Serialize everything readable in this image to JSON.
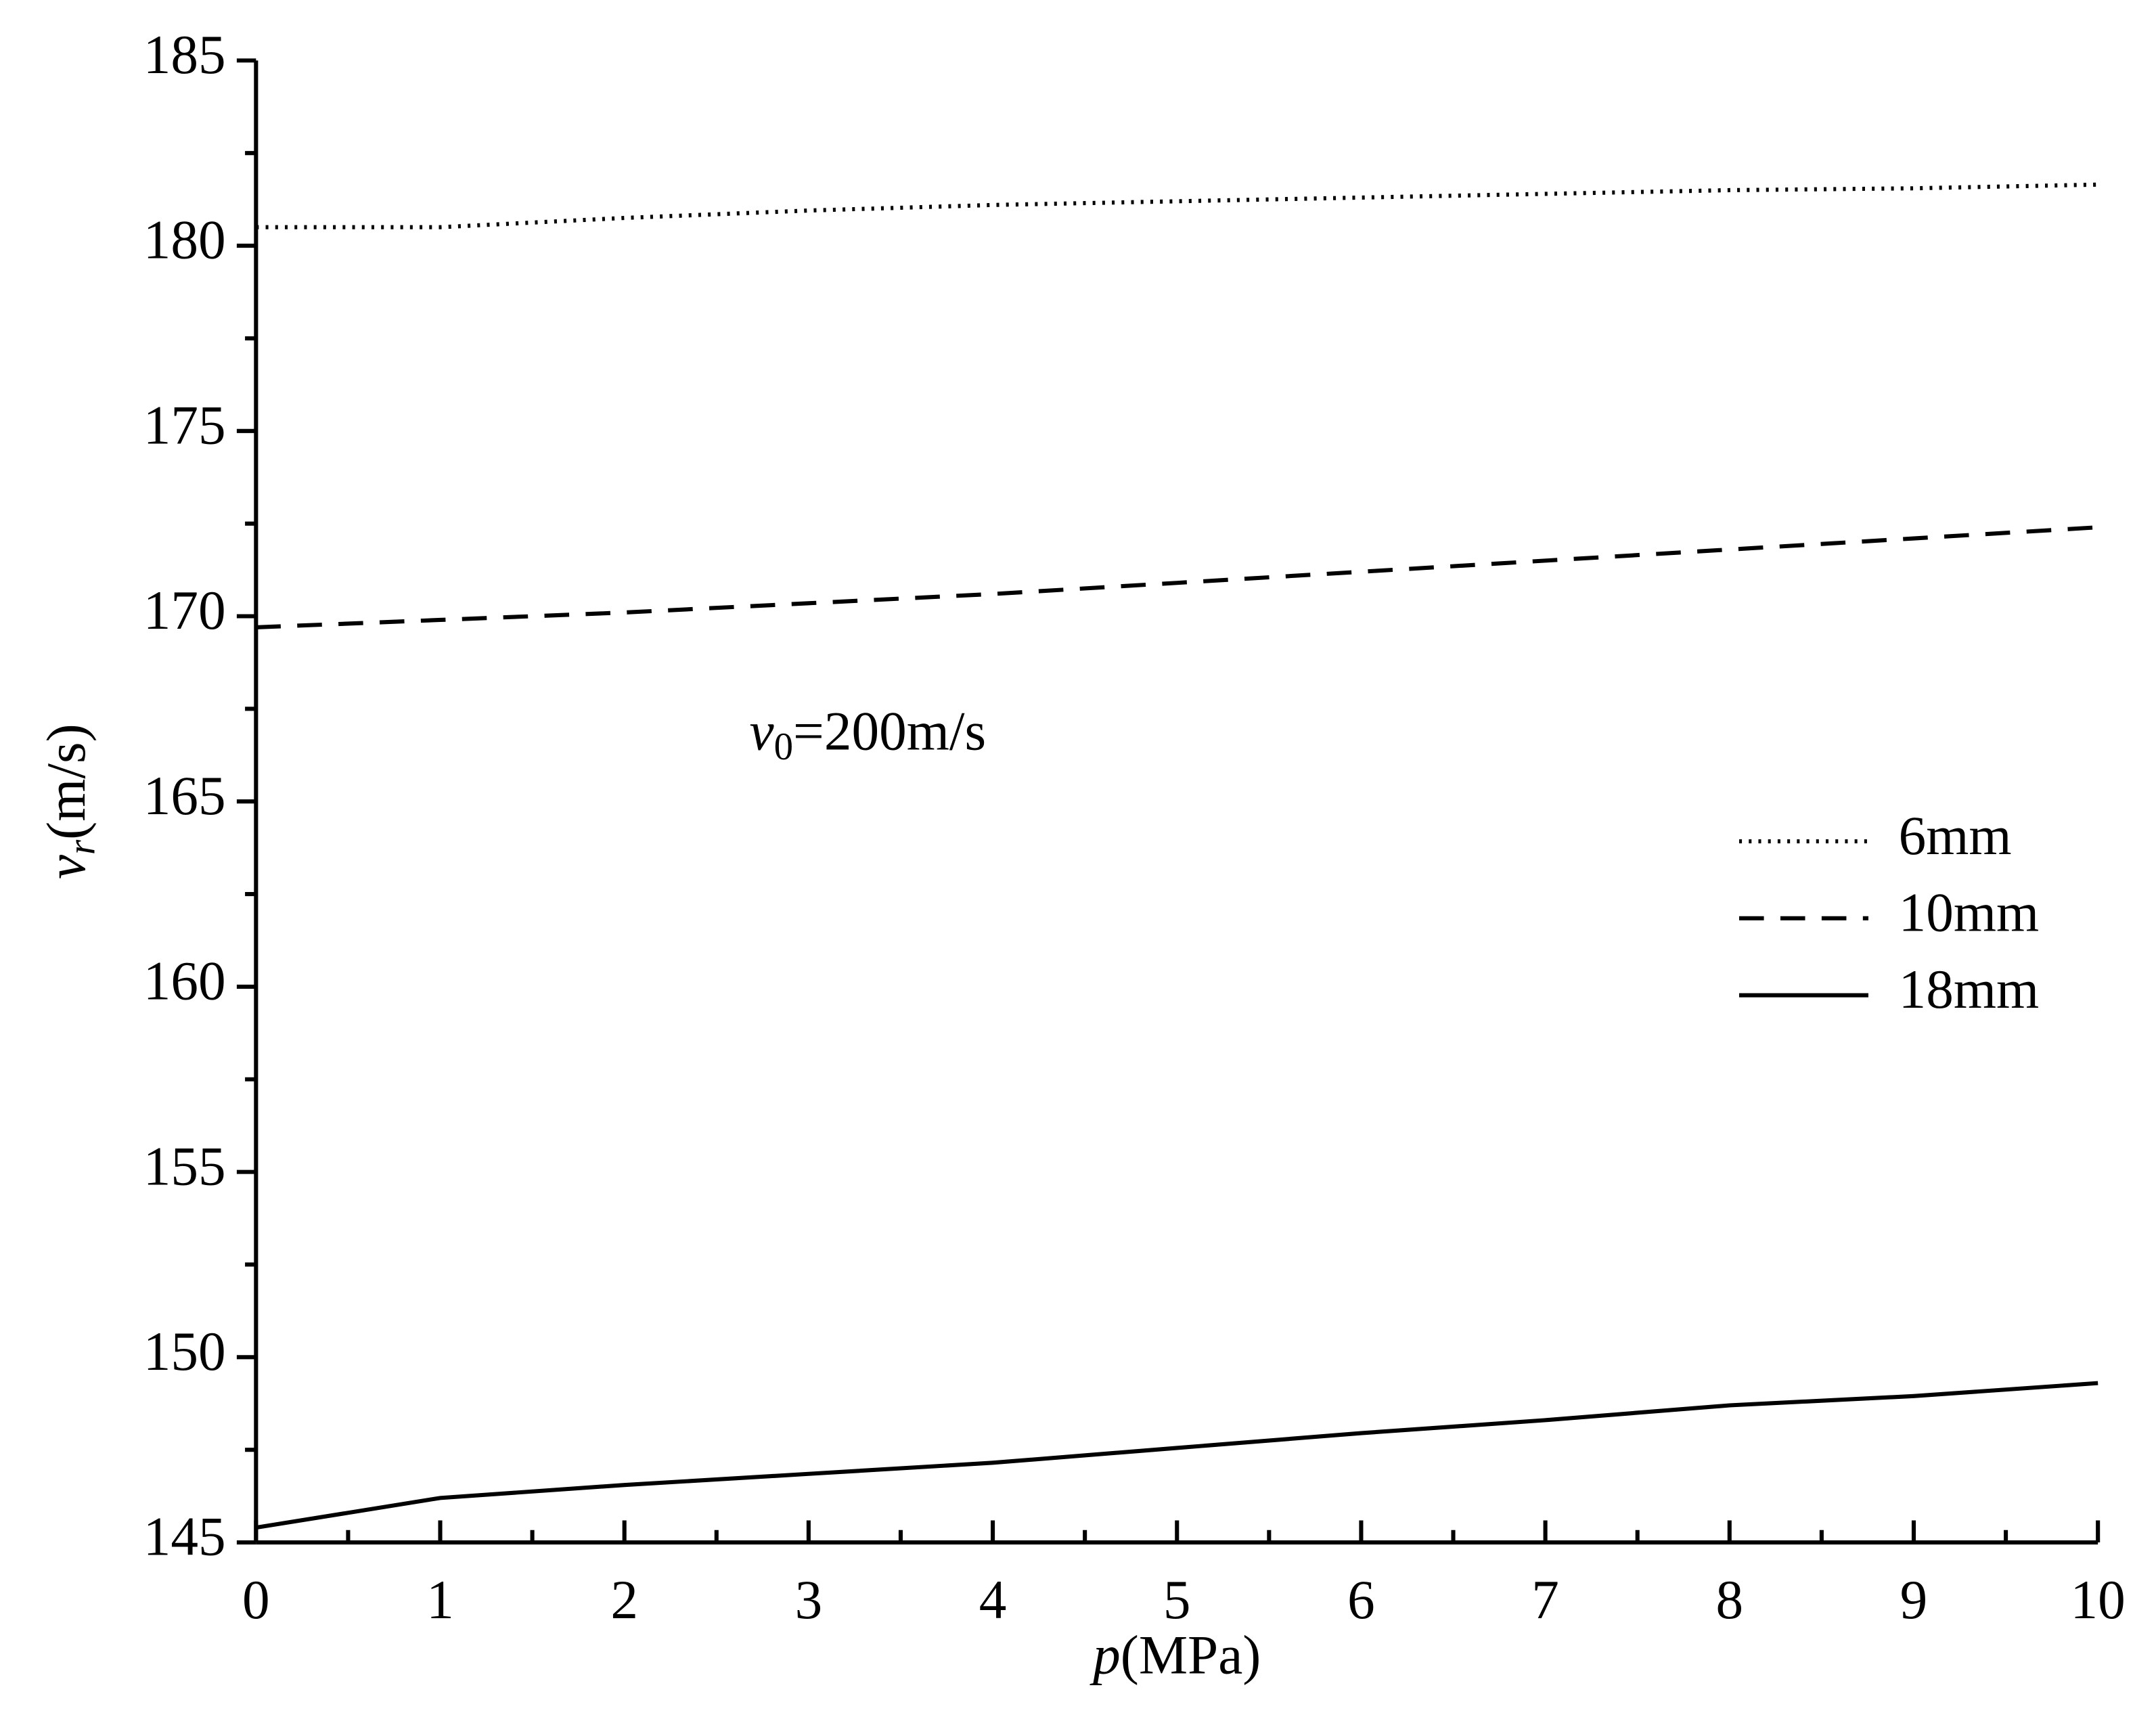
{
  "chart_data": {
    "type": "line",
    "x_label": {
      "symbol": "p",
      "unit": "(MPa)"
    },
    "y_label": {
      "symbol": "v",
      "subscript": "r",
      "unit": "(m/s)"
    },
    "annotation": {
      "symbol": "v",
      "subscript": "0",
      "text": "=200m/s"
    },
    "x": [
      0,
      1,
      2,
      3,
      4,
      5,
      6,
      7,
      8,
      9,
      10
    ],
    "series": [
      {
        "name": "6mm",
        "color": "#000000",
        "dash": "dotted",
        "values": [
          180.5,
          180.5,
          180.75,
          180.95,
          181.1,
          181.2,
          181.3,
          181.4,
          181.5,
          181.55,
          181.65
        ]
      },
      {
        "name": "10mm",
        "color": "#000000",
        "dash": "dashed",
        "values": [
          169.7,
          169.9,
          170.1,
          170.35,
          170.6,
          170.9,
          171.2,
          171.5,
          171.8,
          172.1,
          172.4
        ]
      },
      {
        "name": "18mm",
        "color": "#000000",
        "dash": "solid",
        "values": [
          145.4,
          146.2,
          146.55,
          146.85,
          147.15,
          147.55,
          147.95,
          148.3,
          148.7,
          148.95,
          149.3
        ]
      }
    ],
    "xlim": [
      0,
      10
    ],
    "xticks": [
      0,
      1,
      2,
      3,
      4,
      5,
      6,
      7,
      8,
      9,
      10
    ],
    "xticks_minor": [
      0.5,
      1.5,
      2.5,
      3.5,
      4.5,
      5.5,
      6.5,
      7.5,
      8.5,
      9.5
    ],
    "ylim": [
      145,
      185
    ],
    "yticks": [
      145,
      150,
      155,
      160,
      165,
      170,
      175,
      180,
      185
    ],
    "yticks_minor": [
      147.5,
      152.5,
      157.5,
      162.5,
      167.5,
      172.5,
      177.5,
      182.5
    ],
    "grid": false,
    "legend": "center right"
  }
}
